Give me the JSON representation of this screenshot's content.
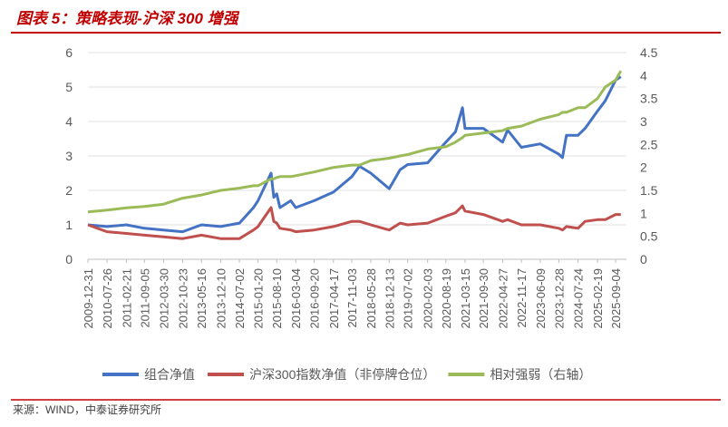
{
  "chart_data": {
    "type": "line",
    "title": "图表 5：策略表现-沪深 300 增强",
    "source": "来源：WIND，中泰证券研究所",
    "x": [
      "2009-12-31",
      "2010-07-26",
      "2011-02-21",
      "2011-09-05",
      "2012-03-30",
      "2012-10-23",
      "2013-05-16",
      "2013-12-10",
      "2014-07-02",
      "2014-12-01",
      "2015-01-20",
      "2015-06-10",
      "2015-07-10",
      "2015-08-10",
      "2015-09-15",
      "2016-01-10",
      "2016-03-04",
      "2016-09-20",
      "2017-04-17",
      "2017-11-03",
      "2018-01-25",
      "2018-05-28",
      "2018-12-13",
      "2019-04-10",
      "2019-07-02",
      "2020-02-03",
      "2020-08-19",
      "2020-12-01",
      "2021-02-15",
      "2021-03-15",
      "2021-09-30",
      "2022-04-27",
      "2022-06-20",
      "2022-11-17",
      "2023-06-09",
      "2023-12-28",
      "2024-02-05",
      "2024-03-20",
      "2024-07-24",
      "2024-10-08",
      "2025-02-19",
      "2025-05-15",
      "2025-09-04",
      "2025-10-31"
    ],
    "xlim": [
      "2009-12-31",
      "2025-12-31"
    ],
    "xticks": [
      "2009-12-31",
      "2010-07-26",
      "2011-02-21",
      "2011-09-05",
      "2012-03-30",
      "2012-10-23",
      "2013-05-16",
      "2013-12-10",
      "2014-07-02",
      "2015-01-20",
      "2015-08-10",
      "2016-03-04",
      "2016-09-20",
      "2017-04-17",
      "2017-11-03",
      "2018-05-28",
      "2018-12-13",
      "2019-07-02",
      "2020-02-03",
      "2020-08-19",
      "2021-03-15",
      "2021-09-30",
      "2022-04-27",
      "2022-11-17",
      "2023-06-09",
      "2023-12-28",
      "2024-07-24",
      "2025-02-19",
      "2025-09-04"
    ],
    "ylim": [
      0,
      6
    ],
    "yticks": [
      0,
      1,
      2,
      3,
      4,
      5,
      6
    ],
    "y2lim": [
      0,
      4.5
    ],
    "y2ticks": [
      0,
      0.5,
      1,
      1.5,
      2,
      2.5,
      3,
      3.5,
      4,
      4.5
    ],
    "grid": true,
    "series": [
      {
        "name": "组合净值",
        "color": "#4472c4",
        "values": [
          1.0,
          0.95,
          1.0,
          0.9,
          0.85,
          0.8,
          1.0,
          0.95,
          1.05,
          1.5,
          1.7,
          2.5,
          1.8,
          1.9,
          1.5,
          1.7,
          1.5,
          1.7,
          1.95,
          2.4,
          2.7,
          2.5,
          2.05,
          2.6,
          2.75,
          2.8,
          3.4,
          3.7,
          4.4,
          3.8,
          3.8,
          3.4,
          3.75,
          3.25,
          3.35,
          3.05,
          2.95,
          3.6,
          3.6,
          3.8,
          4.3,
          4.6,
          5.2,
          5.3
        ]
      },
      {
        "name": "沪深300指数净值（非停牌仓位）",
        "color": "#c0504d",
        "values": [
          1.0,
          0.8,
          0.75,
          0.7,
          0.65,
          0.6,
          0.7,
          0.6,
          0.6,
          0.85,
          0.95,
          1.5,
          1.1,
          1.05,
          0.9,
          0.85,
          0.8,
          0.85,
          0.95,
          1.1,
          1.1,
          1.0,
          0.85,
          1.05,
          1.0,
          1.05,
          1.25,
          1.35,
          1.55,
          1.4,
          1.3,
          1.1,
          1.15,
          1.0,
          1.0,
          0.9,
          0.85,
          0.95,
          0.9,
          1.1,
          1.15,
          1.15,
          1.3,
          1.3
        ]
      },
      {
        "name": "相对强弱（右轴）",
        "color": "#9bbb59",
        "axis": "y2",
        "values": [
          1.03,
          1.07,
          1.12,
          1.15,
          1.2,
          1.33,
          1.4,
          1.5,
          1.55,
          1.6,
          1.6,
          1.75,
          1.75,
          1.78,
          1.8,
          1.8,
          1.82,
          1.9,
          2.0,
          2.05,
          2.05,
          2.15,
          2.2,
          2.25,
          2.28,
          2.4,
          2.45,
          2.55,
          2.65,
          2.7,
          2.75,
          2.8,
          2.85,
          2.9,
          3.05,
          3.15,
          3.2,
          3.2,
          3.3,
          3.3,
          3.5,
          3.75,
          3.9,
          4.1
        ]
      }
    ]
  }
}
